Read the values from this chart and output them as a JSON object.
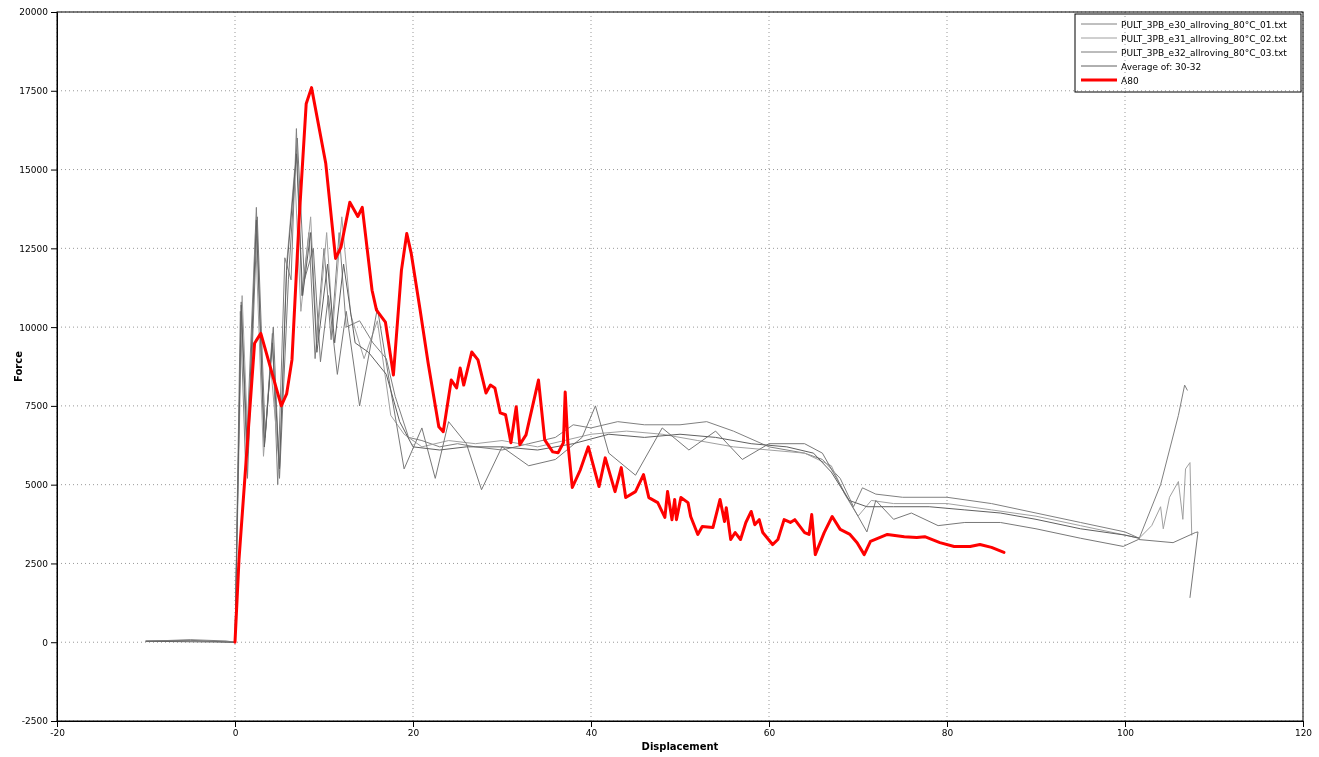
{
  "chart_data": {
    "type": "line",
    "xlabel": "Displacement",
    "ylabel": "Force",
    "xlim": [
      -20,
      120
    ],
    "xticks": [
      -20,
      0,
      20,
      40,
      60,
      80,
      100,
      120
    ],
    "ylim": [
      -2500,
      20000
    ],
    "yticks": [
      -2500,
      0,
      2500,
      5000,
      7500,
      10000,
      12500,
      15000,
      17500,
      20000
    ],
    "grid": true,
    "legend": "top right",
    "line_style": "solid",
    "marker": "none",
    "series": [
      {
        "name": "PULT_3PB_e30_allroving_80°C_01.txt",
        "color": "#808080",
        "x": [
          -10,
          -5,
          -1,
          0,
          0.6,
          1.2,
          2.4,
          3.3,
          4.2,
          4.8,
          5.6,
          6.3,
          6.9,
          7.5,
          8.3,
          9,
          10,
          10.8,
          11.7,
          12.5,
          14,
          15.5,
          17,
          18,
          19.5,
          21,
          23,
          25,
          27,
          30,
          33,
          36,
          38,
          40,
          43,
          46,
          50,
          53,
          56,
          60,
          64,
          66,
          68,
          69.5,
          70.5,
          72,
          75,
          80,
          85,
          90,
          95,
          100,
          101.6,
          104,
          106,
          106.7,
          107
        ],
        "values": [
          30,
          80,
          40,
          0,
          10500,
          5500,
          13800,
          6200,
          9800,
          5000,
          12200,
          11500,
          16300,
          11000,
          13000,
          9000,
          12500,
          9600,
          13000,
          10000,
          10200,
          9500,
          9000,
          7800,
          6500,
          6400,
          6200,
          6300,
          6200,
          6100,
          6300,
          6500,
          6900,
          6800,
          7000,
          6900,
          6900,
          7000,
          6700,
          6200,
          6000,
          5800,
          5200,
          4300,
          4900,
          4700,
          4600,
          4600,
          4400,
          4100,
          3800,
          3500,
          3300,
          5000,
          7200,
          8160,
          8000
        ]
      },
      {
        "name": "PULT_3PB_e31_allroving_80°C_02.txt",
        "color": "#a0a0a0",
        "x": [
          -10,
          -5,
          0,
          0.8,
          1.5,
          2.3,
          3.2,
          4,
          5,
          5.8,
          6.7,
          7.4,
          8.5,
          9.2,
          10.3,
          11,
          12,
          13,
          14.5,
          16,
          17.5,
          19,
          21,
          24,
          27,
          30,
          34,
          37,
          40,
          44,
          48,
          52,
          56,
          60,
          64,
          67,
          68.5,
          70,
          71.5,
          74,
          80,
          85,
          90,
          95,
          100,
          101.6,
          103,
          104,
          104.3,
          105,
          106,
          106.5,
          106.8,
          107.3,
          107.5
        ],
        "values": [
          20,
          50,
          0,
          11000,
          6000,
          13000,
          5900,
          8800,
          5500,
          12000,
          15000,
          10500,
          13500,
          9500,
          13000,
          10000,
          13500,
          10400,
          9000,
          10200,
          7200,
          6600,
          6200,
          6400,
          6300,
          6400,
          6200,
          6400,
          6600,
          6700,
          6600,
          6400,
          6200,
          6100,
          6000,
          5600,
          4700,
          4000,
          4500,
          4400,
          4400,
          4200,
          4000,
          3700,
          3400,
          3300,
          3700,
          4300,
          3600,
          4600,
          5100,
          3900,
          5500,
          5700,
          3400
        ]
      },
      {
        "name": "PULT_3PB_e32_allroving_80°C_03.txt",
        "color": "#787878",
        "x": [
          -10,
          -5,
          0,
          0.7,
          1.4,
          2.5,
          3.4,
          4.3,
          5,
          6,
          7,
          7.8,
          8.8,
          9.6,
          10.5,
          11.5,
          12.5,
          14,
          16,
          17.5,
          19,
          21,
          22.5,
          24,
          26,
          27.7,
          30,
          33,
          36,
          39,
          40.5,
          42,
          45,
          48,
          51,
          54,
          57,
          60,
          64,
          66,
          68,
          70,
          71,
          72,
          74,
          76,
          79,
          82,
          86,
          90,
          95,
          99.8,
          101.5,
          105.4,
          107.9,
          108.2,
          107.3
        ],
        "values": [
          40,
          60,
          0,
          10800,
          5200,
          13500,
          6500,
          10000,
          5200,
          11500,
          16000,
          11500,
          12500,
          8900,
          11000,
          8500,
          10500,
          7500,
          10600,
          8000,
          5500,
          6800,
          5200,
          7000,
          6300,
          4840,
          6200,
          5600,
          5800,
          6500,
          7500,
          6000,
          5300,
          6800,
          6100,
          6700,
          5800,
          6300,
          6300,
          6000,
          5000,
          4000,
          3500,
          4500,
          3900,
          4100,
          3700,
          3800,
          3800,
          3600,
          3300,
          3040,
          3260,
          3160,
          3480,
          3500,
          1420
        ]
      },
      {
        "name": "Average of: 30-32",
        "color": "#606060",
        "x": [
          -10,
          0,
          0.7,
          1.4,
          2.4,
          3.3,
          4.2,
          5,
          5.8,
          6.9,
          7.6,
          8.5,
          9.2,
          10.4,
          11.2,
          12.2,
          13.5,
          15,
          17,
          18.5,
          20,
          23,
          26,
          30,
          34,
          38,
          42,
          46,
          50,
          54,
          58,
          62,
          65,
          67,
          69,
          71,
          74,
          78,
          82,
          86,
          90,
          95,
          100,
          101.6
        ],
        "values": [
          30,
          0,
          10700,
          6000,
          13400,
          6200,
          9500,
          5500,
          11800,
          15500,
          11000,
          13000,
          9200,
          12000,
          9500,
          12000,
          9500,
          9200,
          8500,
          7000,
          6200,
          6100,
          6200,
          6200,
          6100,
          6300,
          6600,
          6500,
          6600,
          6500,
          6300,
          6200,
          6000,
          5400,
          4500,
          4300,
          4300,
          4300,
          4200,
          4100,
          3900,
          3600,
          3400,
          3300
        ]
      },
      {
        "name": "A80",
        "color": "#ff0000",
        "x": [
          0,
          0.45,
          2.2,
          2.9,
          5.2,
          5.8,
          6.4,
          7.2,
          8.0,
          8.6,
          10.2,
          11.3,
          11.9,
          12.9,
          13.8,
          14.3,
          15.4,
          15.9,
          16.9,
          17.8,
          18.7,
          19.3,
          19.8,
          20.8,
          21.7,
          22.9,
          23.4,
          24.3,
          24.9,
          25.3,
          25.7,
          26.6,
          27.3,
          28.2,
          28.7,
          29.2,
          29.8,
          30.4,
          31.0,
          31.6,
          32.0,
          32.7,
          34.1,
          34.8,
          35.7,
          36.3,
          36.9,
          37.1,
          37.4,
          37.9,
          38.8,
          39.7,
          40.9,
          41.6,
          42.7,
          43.4,
          43.9,
          45.0,
          45.9,
          46.5,
          47.5,
          48.3,
          48.6,
          49.1,
          49.4,
          49.6,
          50.1,
          50.9,
          51.2,
          52.0,
          52.5,
          53.7,
          54.5,
          55.0,
          55.2,
          55.7,
          56.2,
          56.8,
          57.4,
          58.0,
          58.4,
          58.9,
          59.3,
          60.4,
          61.0,
          61.7,
          62.4,
          62.9,
          64.0,
          64.5,
          64.8,
          65.2,
          66.2,
          67.1,
          68.0,
          69.1,
          69.9,
          70.7,
          71.4,
          73.3,
          75.2,
          76.6,
          77.5,
          79.2,
          80.8,
          82.6,
          83.7,
          85.0,
          86.4
        ],
        "values": [
          0,
          2630,
          9490,
          9800,
          7500,
          7880,
          8960,
          13390,
          17090,
          17600,
          15190,
          12180,
          12530,
          13960,
          13510,
          13800,
          11170,
          10540,
          10160,
          8480,
          11800,
          12970,
          12340,
          10540,
          8860,
          6840,
          6680,
          8320,
          8070,
          8700,
          8160,
          9210,
          8960,
          7910,
          8160,
          8070,
          7280,
          7220,
          6330,
          7470,
          6270,
          6580,
          8320,
          6420,
          6040,
          6010,
          6330,
          7940,
          6330,
          4910,
          5470,
          6200,
          4940,
          5850,
          4780,
          5540,
          4590,
          4780,
          5320,
          4590,
          4430,
          3960,
          4780,
          3890,
          4530,
          3890,
          4590,
          4430,
          3990,
          3420,
          3670,
          3640,
          4530,
          3830,
          4270,
          3260,
          3480,
          3260,
          3800,
          4150,
          3730,
          3890,
          3480,
          3100,
          3260,
          3890,
          3800,
          3890,
          3480,
          3420,
          4050,
          2780,
          3480,
          3990,
          3580,
          3420,
          3160,
          2780,
          3200,
          3420,
          3350,
          3320,
          3350,
          3160,
          3040,
          3040,
          3100,
          3010,
          2850
        ]
      }
    ]
  }
}
